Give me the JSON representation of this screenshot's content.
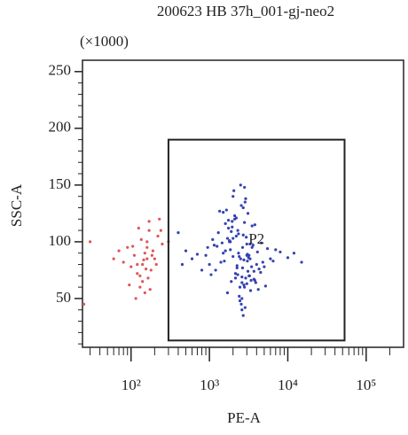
{
  "chart_data": {
    "type": "scatter",
    "title": "200623 HB 37h_001-gj-neo2",
    "y_multiplier": "(×1000)",
    "xlabel": "PE-A",
    "ylabel": "SSC-A",
    "xscale": "log",
    "xlim": [
      24,
      300000
    ],
    "ylim": [
      7,
      260
    ],
    "xticks": [
      {
        "value": 100,
        "label": "10²"
      },
      {
        "value": 1000,
        "label": "10³"
      },
      {
        "value": 10000,
        "label": "10⁴"
      },
      {
        "value": 100000,
        "label": "10⁵"
      }
    ],
    "xminorticks": [
      30,
      40,
      50,
      60,
      70,
      80,
      90,
      200,
      300,
      400,
      500,
      600,
      700,
      800,
      900,
      2000,
      3000,
      4000,
      5000,
      6000,
      7000,
      8000,
      9000,
      20000,
      30000,
      40000,
      50000,
      60000,
      70000,
      80000,
      90000,
      200000
    ],
    "yticks": [
      50,
      100,
      150,
      200,
      250
    ],
    "yminorticks": [
      10,
      20,
      30,
      40,
      60,
      70,
      80,
      90,
      110,
      120,
      130,
      140,
      160,
      170,
      180,
      190,
      210,
      220,
      230,
      240
    ],
    "gate": {
      "name": "P2",
      "x": [
        300,
        53000
      ],
      "y": [
        13,
        190
      ]
    },
    "series": [
      {
        "color": "#e05555",
        "x": [
          150,
          120,
          180,
          90,
          200,
          160,
          130,
          110,
          170,
          140,
          100,
          190,
          220,
          80,
          150,
          130,
          170,
          60,
          250,
          120,
          145,
          165,
          105,
          185,
          135,
          155,
          95,
          175,
          210,
          125,
          70,
          115,
          160,
          140,
          230,
          30,
          25,
          160,
          240,
          300
        ],
        "y": [
          90,
          80,
          75,
          95,
          85,
          100,
          70,
          88,
          110,
          65,
          78,
          92,
          105,
          82,
          55,
          60,
          118,
          85,
          98,
          72,
          84,
          68,
          96,
          88,
          102,
          76,
          62,
          58,
          80,
          112,
          92,
          50,
          95,
          80,
          120,
          100,
          45,
          85,
          110,
          100
        ]
      },
      {
        "color": "#3442b0",
        "x": [
          2500,
          1800,
          3200,
          2100,
          2800,
          1500,
          4000,
          2300,
          3500,
          1200,
          2700,
          1900,
          3000,
          2200,
          5000,
          1600,
          2600,
          3800,
          1400,
          2900,
          2000,
          3300,
          1700,
          2400,
          4500,
          1100,
          2750,
          3100,
          1850,
          2550,
          6000,
          1300,
          2650,
          3400,
          1950,
          2350,
          4200,
          1000,
          2850,
          3600,
          2150,
          1750,
          3050,
          2450,
          5500,
          900,
          2950,
          3700,
          1650,
          2250,
          8000,
          800,
          2050,
          3150,
          2600,
          1450,
          3900,
          2800,
          1550,
          2700,
          700,
          3250,
          2100,
          4800,
          1250,
          2500,
          3350,
          1800,
          2300,
          7000,
          600,
          2900,
          3000,
          1900,
          4300,
          1150,
          2400,
          3500,
          2000,
          2600,
          10000,
          500,
          2200,
          3100,
          1700,
          2750,
          5200,
          1350,
          2650,
          3800,
          12000,
          450,
          2350,
          2850,
          1600,
          3450,
          4600,
          1050,
          2550,
          3200,
          2450,
          1950,
          6500,
          950,
          2800,
          3700,
          1850,
          2150,
          3050,
          400,
          15000,
          2700,
          1750,
          4100,
          2250,
          3000,
          1500,
          2600,
          3300,
          2000
        ],
        "y": [
          85,
          100,
          70,
          120,
          60,
          90,
          80,
          110,
          95,
          75,
          130,
          65,
          88,
          105,
          78,
          92,
          50,
          115,
          82,
          68,
          140,
          98,
          55,
          87,
          73,
          102,
          62,
          125,
          93,
          45,
          85,
          108,
          77,
          66,
          118,
          90,
          58,
          80,
          135,
          97,
          72,
          112,
          83,
          48,
          94,
          88,
          104,
          67,
          128,
          79,
          91,
          75,
          145,
          86,
          40,
          99,
          64,
          117,
          83,
          106,
          89,
          70,
          123,
          82,
          96,
          150,
          57,
          101,
          71,
          93,
          85,
          138,
          63,
          109,
          76,
          97,
          52,
          114,
          87,
          69,
          86,
          92,
          121,
          74,
          103,
          84,
          61,
          127,
          95,
          66,
          90,
          80,
          107,
          42,
          116,
          78,
          99,
          71,
          132,
          88,
          60,
          113,
          83,
          95,
          148,
          74,
          100,
          68,
          89,
          108,
          82,
          35,
          119,
          91,
          77,
          98,
          126,
          64,
          85,
          103
        ]
      }
    ]
  }
}
